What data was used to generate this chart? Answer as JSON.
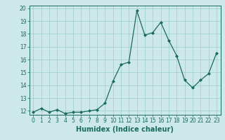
{
  "x": [
    0,
    1,
    2,
    3,
    4,
    5,
    6,
    7,
    8,
    9,
    10,
    11,
    12,
    13,
    14,
    15,
    16,
    17,
    18,
    19,
    20,
    21,
    22,
    23
  ],
  "y": [
    11.9,
    12.2,
    11.9,
    12.1,
    11.8,
    11.9,
    11.9,
    12.0,
    12.1,
    12.6,
    14.3,
    15.6,
    15.8,
    19.8,
    17.9,
    18.1,
    18.9,
    17.5,
    16.3,
    14.4,
    13.8,
    14.4,
    14.9,
    16.5
  ],
  "xlabel": "Humidex (Indice chaleur)",
  "ylim_min": 11.7,
  "ylim_max": 20.2,
  "xlim_min": -0.5,
  "xlim_max": 23.5,
  "yticks": [
    12,
    13,
    14,
    15,
    16,
    17,
    18,
    19,
    20
  ],
  "xticks": [
    0,
    1,
    2,
    3,
    4,
    5,
    6,
    7,
    8,
    9,
    10,
    11,
    12,
    13,
    14,
    15,
    16,
    17,
    18,
    19,
    20,
    21,
    22,
    23
  ],
  "line_color": "#1a6b5a",
  "marker": "D",
  "marker_size": 2.0,
  "bg_color": "#cce8e8",
  "grid_color": "#99cccc",
  "xlabel_fontsize": 7,
  "tick_fontsize": 5.5,
  "tick_color": "#1a6b5a",
  "xlabel_color": "#1a6b5a",
  "linewidth": 0.9
}
